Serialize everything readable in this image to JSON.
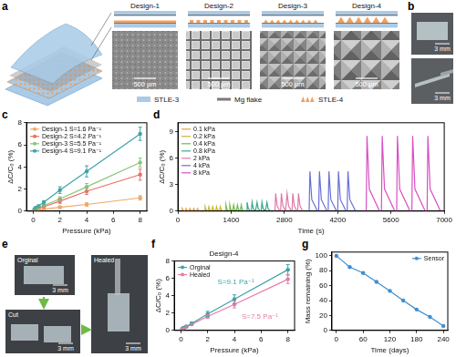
{
  "panel_labels": [
    "a",
    "b",
    "c",
    "d",
    "e",
    "f",
    "g"
  ],
  "panel_a": {
    "designs": [
      "Design-1",
      "Design-2",
      "Design-3",
      "Design-4"
    ],
    "scale_bars": [
      "500 μm",
      "500 μm",
      "500 μm",
      "500 μm"
    ],
    "legend": [
      {
        "name": "STLE-3",
        "color": "#a9cbe8"
      },
      {
        "name": "Mg flake",
        "color": "#7a7a7a"
      },
      {
        "name": "STLE-4",
        "color": "#f0a060"
      }
    ]
  },
  "panel_b": {
    "scale_bars": [
      "3 mm",
      "3 mm"
    ]
  },
  "panel_e": {
    "photos": [
      "Orginal",
      "Cut",
      "Healed"
    ],
    "scale_bars": [
      "3 mm",
      "3 mm",
      "3 mm"
    ]
  },
  "chart_data": [
    {
      "type": "line",
      "xlabel": "Pressure (kPa)",
      "ylabel": "ΔC/C₀ (%)",
      "xlim": [
        -0.5,
        8.5
      ],
      "xticks": [
        0,
        2,
        4,
        6,
        8
      ],
      "ylim": [
        0,
        8
      ],
      "yticks": [
        0,
        2,
        4,
        6,
        8
      ],
      "grid": false,
      "legend": "upper left",
      "marker": "circle",
      "series": [
        {
          "name": "Design-1 S=1.6 Pa⁻¹",
          "color": "#f0a868",
          "x": [
            0.1,
            0.2,
            0.4,
            0.8,
            2,
            4,
            8
          ],
          "values": [
            0.05,
            0.08,
            0.12,
            0.18,
            0.35,
            0.6,
            1.2
          ],
          "errors": [
            0.03,
            0.03,
            0.05,
            0.05,
            0.1,
            0.15,
            0.2
          ]
        },
        {
          "name": "Design-2 S=4.2 Pa⁻¹",
          "color": "#e8706a",
          "x": [
            0.1,
            0.2,
            0.4,
            0.8,
            2,
            4,
            8
          ],
          "values": [
            0.1,
            0.15,
            0.25,
            0.4,
            0.9,
            1.8,
            3.3
          ],
          "errors": [
            0.05,
            0.05,
            0.08,
            0.1,
            0.2,
            0.3,
            0.5
          ]
        },
        {
          "name": "Design-3 S=5.5 Pa⁻¹",
          "color": "#86c77e",
          "x": [
            0.1,
            0.2,
            0.4,
            0.8,
            2,
            4,
            8
          ],
          "values": [
            0.12,
            0.2,
            0.3,
            0.5,
            1.1,
            2.2,
            4.4
          ],
          "errors": [
            0.05,
            0.05,
            0.1,
            0.1,
            0.2,
            0.3,
            0.4
          ]
        },
        {
          "name": "Design-4 S=9.1 Pa⁻¹",
          "color": "#3fa3a8",
          "x": [
            0.1,
            0.2,
            0.4,
            0.8,
            2,
            4,
            8
          ],
          "values": [
            0.2,
            0.3,
            0.45,
            0.8,
            1.9,
            3.6,
            7.0
          ],
          "errors": [
            0.05,
            0.1,
            0.1,
            0.15,
            0.3,
            0.5,
            0.6
          ]
        }
      ]
    },
    {
      "type": "line",
      "xlabel": "Time (s)",
      "ylabel": "ΔC/C₀ (%)",
      "xlim": [
        0,
        7000
      ],
      "xticks": [
        0,
        1400,
        2800,
        4200,
        5600,
        7000
      ],
      "ylim": [
        0,
        10
      ],
      "yticks": [
        0,
        3,
        6,
        9
      ],
      "grid": false,
      "legend": "upper left",
      "marker": "none",
      "series": [
        {
          "name": "0.1 kPa",
          "color": "#e8a33d",
          "x": [
            100,
            115,
            140,
            190,
            200,
            215,
            240,
            290,
            300,
            315,
            340,
            390,
            400,
            415,
            440,
            490,
            500,
            515,
            540,
            590
          ],
          "values": [
            0,
            0.3,
            0.1,
            0,
            0,
            0.3,
            0.1,
            0,
            0,
            0.3,
            0.1,
            0,
            0,
            0.3,
            0.1,
            0,
            0,
            0.3,
            0.1,
            0
          ]
        },
        {
          "name": "0.2 kPa",
          "color": "#c9b52e",
          "x": [
            700,
            715,
            740,
            790,
            800,
            815,
            840,
            890,
            900,
            915,
            940,
            990,
            1000,
            1015,
            1040,
            1090,
            1100,
            1115,
            1140,
            1190
          ],
          "values": [
            0,
            0.5,
            0.15,
            0,
            0,
            0.5,
            0.15,
            0,
            0,
            0.5,
            0.15,
            0,
            0,
            0.5,
            0.15,
            0,
            0,
            0.5,
            0.15,
            0
          ]
        },
        {
          "name": "0.4 kPa",
          "color": "#6dbb45",
          "x": [
            1250,
            1265,
            1290,
            1340,
            1350,
            1365,
            1390,
            1440,
            1450,
            1465,
            1490,
            1540,
            1550,
            1565,
            1590,
            1640,
            1650,
            1665,
            1690,
            1740
          ],
          "values": [
            0,
            0.7,
            0.2,
            0,
            0,
            0.7,
            0.2,
            0,
            0,
            0.7,
            0.2,
            0,
            0,
            0.7,
            0.2,
            0,
            0,
            0.7,
            0.2,
            0
          ]
        },
        {
          "name": "0.8 kPa",
          "color": "#3aa88c",
          "x": [
            1800,
            1820,
            1850,
            1910,
            1930,
            1950,
            1980,
            2040,
            2060,
            2080,
            2110,
            2170,
            2190,
            2210,
            2240,
            2300,
            2320,
            2340,
            2370,
            2430
          ],
          "values": [
            0,
            1.0,
            0.3,
            0,
            0,
            1.0,
            0.3,
            0,
            0,
            1.0,
            0.3,
            0,
            0,
            1.0,
            0.3,
            0,
            0,
            1.0,
            0.3,
            0
          ]
        },
        {
          "name": "2 kPa",
          "color": "#e07aa8",
          "x": [
            2550,
            2570,
            2610,
            2680,
            2700,
            2720,
            2760,
            2830,
            2850,
            2870,
            2910,
            2980,
            3000,
            3020,
            3060,
            3130,
            3150,
            3170,
            3210,
            3280
          ],
          "values": [
            0,
            2.0,
            0.6,
            0,
            0,
            2.0,
            0.6,
            0,
            0,
            2.0,
            0.6,
            0,
            0,
            2.0,
            0.6,
            0,
            0,
            2.0,
            0.6,
            0
          ]
        },
        {
          "name": "4 kPa",
          "color": "#6a6fd8",
          "x": [
            3450,
            3470,
            3520,
            3670,
            3700,
            3720,
            3770,
            3920,
            3950,
            3970,
            4020,
            4170,
            4200,
            4220,
            4270,
            4420,
            4450,
            4470,
            4520,
            4670
          ],
          "values": [
            0,
            4.5,
            1.3,
            0,
            0,
            4.5,
            1.3,
            0,
            0,
            4.5,
            1.3,
            0,
            0,
            4.5,
            1.3,
            0,
            0,
            4.5,
            1.3,
            0
          ]
        },
        {
          "name": "8 kPa",
          "color": "#d94fc4",
          "x": [
            4950,
            4970,
            5030,
            5300,
            5350,
            5370,
            5430,
            5700,
            5750,
            5770,
            5830,
            6100,
            6150,
            6170,
            6230,
            6500,
            6550,
            6570,
            6630,
            6900
          ],
          "values": [
            0,
            8.5,
            2.5,
            0,
            0,
            8.5,
            2.5,
            0,
            0,
            8.5,
            2.5,
            0,
            0,
            8.5,
            2.5,
            0,
            0,
            8.5,
            2.5,
            0
          ]
        }
      ]
    },
    {
      "type": "line",
      "title": "Design-4",
      "xlabel": "Pressure (kPa)",
      "ylabel": "ΔC/C₀ (%)",
      "xlim": [
        -0.5,
        8.5
      ],
      "xticks": [
        0,
        2,
        4,
        6,
        8
      ],
      "ylim": [
        0,
        8
      ],
      "yticks": [
        0,
        2,
        4,
        6,
        8
      ],
      "grid": false,
      "legend": "upper left",
      "marker": "circle",
      "annotations": [
        {
          "text": "S=9.1 Pa⁻¹",
          "color": "#3fa3a8"
        },
        {
          "text": "S=7.5 Pa⁻¹",
          "color": "#e87aa8"
        }
      ],
      "series": [
        {
          "name": "Orginal",
          "color": "#3fa3a8",
          "x": [
            0.1,
            0.2,
            0.4,
            0.8,
            2,
            4,
            8
          ],
          "values": [
            0.2,
            0.3,
            0.45,
            0.8,
            1.9,
            3.6,
            7.0
          ],
          "errors": [
            0.05,
            0.1,
            0.1,
            0.15,
            0.3,
            0.5,
            0.6
          ]
        },
        {
          "name": "Healed",
          "color": "#e87aa8",
          "x": [
            0.1,
            0.2,
            0.4,
            0.8,
            2,
            4,
            8
          ],
          "values": [
            0.15,
            0.25,
            0.4,
            0.7,
            1.6,
            3.0,
            5.9
          ],
          "errors": [
            0.05,
            0.05,
            0.1,
            0.1,
            0.2,
            0.4,
            0.5
          ]
        }
      ]
    },
    {
      "type": "line",
      "xlabel": "Time (days)",
      "ylabel": "Mass remaining (%)",
      "xlim": [
        -10,
        250
      ],
      "xticks": [
        0,
        60,
        120,
        180,
        240
      ],
      "ylim": [
        0,
        105
      ],
      "yticks": [
        0,
        20,
        40,
        60,
        80,
        100
      ],
      "grid": false,
      "legend": "upper right",
      "marker": "circle",
      "series": [
        {
          "name": "Sensor",
          "color": "#3f8fd0",
          "x": [
            0,
            30,
            60,
            90,
            120,
            150,
            180,
            210,
            240
          ],
          "values": [
            100,
            85,
            77,
            65,
            53,
            40,
            28,
            18,
            6
          ]
        }
      ]
    }
  ]
}
